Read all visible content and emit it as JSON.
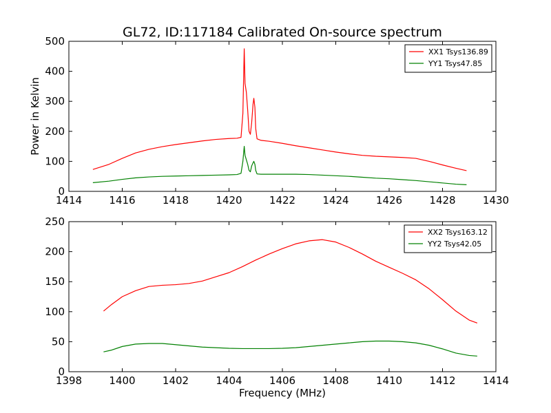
{
  "figure": {
    "title": "GL72, ID:117184 Calibrated On-source spectrum",
    "colors": {
      "red": "#ff0000",
      "green": "#008000",
      "axes": "#000000",
      "background": "#ffffff"
    }
  },
  "chart_data": [
    {
      "type": "line",
      "title": "GL72, ID:117184 Calibrated On-source spectrum",
      "xlabel": "",
      "ylabel": "Power in Kelvin",
      "xlim": [
        1414,
        1430
      ],
      "ylim": [
        0,
        500
      ],
      "xticks": [
        1414,
        1416,
        1418,
        1420,
        1422,
        1424,
        1426,
        1428,
        1430
      ],
      "yticks": [
        0,
        100,
        200,
        300,
        400,
        500
      ],
      "grid": false,
      "legend_position": "top-right",
      "series": [
        {
          "name": "XX1 Tsys136.89",
          "color": "#ff0000",
          "x": [
            1414.9,
            1415.5,
            1416.0,
            1416.5,
            1417.0,
            1417.5,
            1418.0,
            1418.5,
            1419.0,
            1419.5,
            1420.0,
            1420.3,
            1420.45,
            1420.52,
            1420.57,
            1420.6,
            1420.65,
            1420.7,
            1420.75,
            1420.8,
            1420.85,
            1420.9,
            1420.93,
            1420.97,
            1421.0,
            1421.05,
            1421.2,
            1421.5,
            1422.0,
            1422.5,
            1423.0,
            1423.5,
            1424.0,
            1424.5,
            1425.0,
            1425.5,
            1426.0,
            1426.5,
            1427.0,
            1427.5,
            1428.0,
            1428.5,
            1428.9
          ],
          "y": [
            73,
            90,
            110,
            128,
            140,
            149,
            156,
            162,
            168,
            173,
            176,
            177,
            180,
            260,
            475,
            360,
            330,
            270,
            200,
            190,
            230,
            290,
            310,
            280,
            210,
            175,
            170,
            167,
            160,
            152,
            145,
            138,
            131,
            125,
            120,
            117,
            115,
            113,
            110,
            100,
            88,
            77,
            69
          ]
        },
        {
          "name": "YY1 Tsys47.85",
          "color": "#008000",
          "x": [
            1414.9,
            1415.5,
            1416.0,
            1416.5,
            1417.0,
            1417.5,
            1418.0,
            1418.5,
            1419.0,
            1419.5,
            1420.0,
            1420.3,
            1420.45,
            1420.52,
            1420.57,
            1420.6,
            1420.65,
            1420.7,
            1420.75,
            1420.8,
            1420.85,
            1420.9,
            1420.93,
            1420.97,
            1421.0,
            1421.05,
            1421.2,
            1421.5,
            1422.0,
            1422.5,
            1423.0,
            1423.5,
            1424.0,
            1424.5,
            1425.0,
            1425.5,
            1426.0,
            1426.5,
            1427.0,
            1427.5,
            1428.0,
            1428.5,
            1428.9
          ],
          "y": [
            29,
            34,
            40,
            45,
            48,
            50,
            51,
            52,
            53,
            54,
            55,
            56,
            60,
            100,
            150,
            120,
            105,
            90,
            70,
            65,
            85,
            95,
            100,
            90,
            70,
            58,
            57,
            57,
            57,
            57,
            56,
            54,
            52,
            50,
            47,
            44,
            42,
            39,
            36,
            32,
            28,
            24,
            22
          ]
        }
      ]
    },
    {
      "type": "line",
      "title": "",
      "xlabel": "Frequency (MHz)",
      "ylabel": "",
      "xlim": [
        1398,
        1414
      ],
      "ylim": [
        0,
        250
      ],
      "xticks": [
        1398,
        1400,
        1402,
        1404,
        1406,
        1408,
        1410,
        1412,
        1414
      ],
      "yticks": [
        0,
        50,
        100,
        150,
        200,
        250
      ],
      "grid": false,
      "legend_position": "top-right",
      "series": [
        {
          "name": "XX2 Tsys163.12",
          "color": "#ff0000",
          "x": [
            1399.3,
            1399.6,
            1400.0,
            1400.5,
            1401.0,
            1401.5,
            1402.0,
            1402.5,
            1403.0,
            1403.5,
            1404.0,
            1404.5,
            1405.0,
            1405.5,
            1406.0,
            1406.5,
            1407.0,
            1407.5,
            1408.0,
            1408.5,
            1409.0,
            1409.5,
            1410.0,
            1410.5,
            1411.0,
            1411.5,
            1412.0,
            1412.5,
            1413.0,
            1413.3
          ],
          "y": [
            101,
            112,
            125,
            135,
            142,
            144,
            145,
            147,
            151,
            158,
            165,
            175,
            186,
            196,
            205,
            213,
            218,
            220,
            216,
            207,
            196,
            184,
            174,
            164,
            153,
            138,
            120,
            101,
            86,
            81
          ]
        },
        {
          "name": "YY2 Tsys42.05",
          "color": "#008000",
          "x": [
            1399.3,
            1399.6,
            1400.0,
            1400.5,
            1401.0,
            1401.5,
            1402.0,
            1402.5,
            1403.0,
            1403.5,
            1404.0,
            1404.5,
            1405.0,
            1405.5,
            1406.0,
            1406.5,
            1407.0,
            1407.5,
            1408.0,
            1408.5,
            1409.0,
            1409.5,
            1410.0,
            1410.5,
            1411.0,
            1411.5,
            1412.0,
            1412.5,
            1413.0,
            1413.3
          ],
          "y": [
            33,
            36,
            42,
            46,
            47,
            47,
            45,
            43,
            41,
            40,
            39,
            38.5,
            38.5,
            38.5,
            39,
            40,
            42,
            44,
            46,
            48,
            50,
            51,
            51,
            50,
            48,
            44,
            38,
            31,
            27,
            26
          ]
        }
      ]
    }
  ]
}
